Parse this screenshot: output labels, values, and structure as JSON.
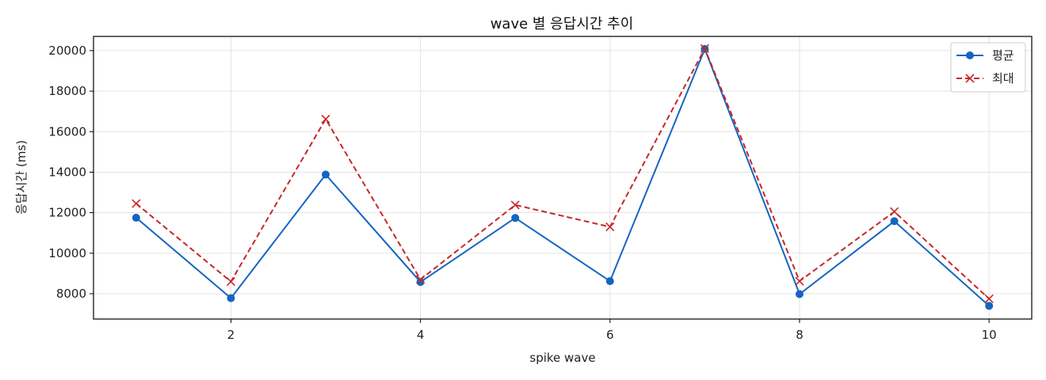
{
  "chart_data": {
    "type": "line",
    "title": "wave 별 응답시간 추이",
    "xlabel": "spike wave",
    "ylabel": "응답시간 (ms)",
    "x": [
      1,
      2,
      3,
      4,
      5,
      6,
      7,
      8,
      9,
      10
    ],
    "xticks": [
      2,
      4,
      6,
      8,
      10
    ],
    "yticks": [
      8000,
      10000,
      12000,
      14000,
      16000,
      18000,
      20000
    ],
    "xlim": [
      0.55,
      10.45
    ],
    "ylim": [
      6750,
      20700
    ],
    "grid": true,
    "legend_position": "top-right",
    "series": [
      {
        "name": "평균",
        "color": "#1565c0",
        "line_style": "solid",
        "marker": "circle",
        "values": [
          11750,
          7780,
          13880,
          8580,
          11740,
          8620,
          20080,
          7980,
          11580,
          7400
        ]
      },
      {
        "name": "최대",
        "color": "#c62828",
        "line_style": "dashed",
        "marker": "x",
        "values": [
          12450,
          8600,
          16620,
          8700,
          12380,
          11300,
          20100,
          8620,
          12050,
          7750
        ]
      }
    ]
  }
}
